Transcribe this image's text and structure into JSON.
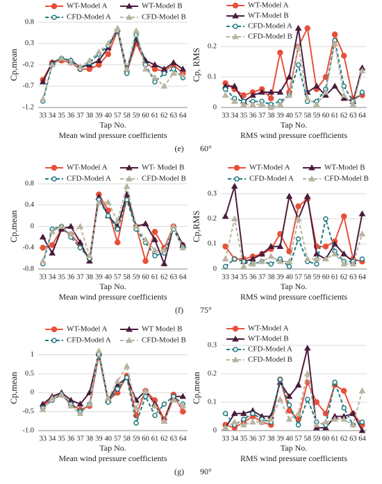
{
  "chart_data": [
    {
      "type": "line",
      "ylabel": "Cp,mean",
      "xlabel": "Tap No.",
      "subtitle": "Mean wind pressure coefficients",
      "legend": "top",
      "categories": [
        "33",
        "34",
        "35",
        "36",
        "37",
        "38",
        "39",
        "40",
        "57",
        "58",
        "59",
        "60",
        "61",
        "62",
        "63",
        "64"
      ],
      "ylim": [
        -1.2,
        0.8
      ],
      "yticks": [
        -1.2,
        -0.7,
        -0.2,
        0.3,
        0.8
      ],
      "grid": true,
      "series": [
        {
          "name": "WT-Model A",
          "color": "#e8503a",
          "marker": "circle",
          "dashed": false,
          "values": [
            -0.55,
            -0.15,
            -0.1,
            -0.15,
            -0.3,
            -0.3,
            -0.2,
            0.05,
            0.6,
            -0.35,
            0.3,
            -0.15,
            -0.3,
            -0.35,
            -0.2,
            -0.4
          ]
        },
        {
          "name": "WT-Model B",
          "color": "#4a1c3c",
          "marker": "triangle",
          "dashed": false,
          "values": [
            -0.6,
            -0.15,
            -0.05,
            -0.1,
            -0.25,
            -0.2,
            -0.1,
            0.2,
            0.65,
            -0.3,
            0.4,
            -0.1,
            -0.2,
            -0.3,
            -0.15,
            -0.3
          ]
        },
        {
          "name": "CFD-Model A",
          "color": "#1f7a80",
          "marker": "hollow",
          "dashed": true,
          "values": [
            -1.05,
            -0.2,
            -0.05,
            -0.1,
            -0.3,
            -0.15,
            0.05,
            0.25,
            0.6,
            -0.4,
            0.5,
            -0.2,
            -0.6,
            -0.4,
            -0.3,
            -0.5
          ]
        },
        {
          "name": "CFD-Model B",
          "color": "#b8b4a0",
          "marker": "triangle",
          "dashed": true,
          "values": [
            -1.0,
            -0.2,
            -0.05,
            -0.15,
            -0.25,
            -0.1,
            0.1,
            0.3,
            0.65,
            -0.3,
            0.6,
            -0.3,
            -0.5,
            -0.7,
            -0.4,
            -0.45
          ]
        }
      ]
    },
    {
      "type": "line",
      "ylabel": "Cp, RMS",
      "xlabel": "Tap No.",
      "subtitle": "RMS wind pressure coefficients",
      "legend": "upper-left",
      "categories": [
        "33",
        "34",
        "35",
        "36",
        "37",
        "38",
        "39",
        "40",
        "57",
        "58",
        "59",
        "60",
        "61",
        "62",
        "63",
        "64"
      ],
      "ylim": [
        0,
        0.28
      ],
      "yticks": [
        0,
        0.1,
        0.2
      ],
      "grid": true,
      "series": [
        {
          "name": "WT-Model A",
          "color": "#e8503a",
          "marker": "circle",
          "dashed": false,
          "values": [
            0.08,
            0.06,
            0.04,
            0.05,
            0.06,
            0.03,
            0.18,
            0.05,
            0.2,
            0.26,
            0.06,
            0.1,
            0.24,
            0.17,
            0.03,
            0.04
          ]
        },
        {
          "name": "WT-Model B",
          "color": "#4a1c3c",
          "marker": "triangle",
          "dashed": false,
          "values": [
            0.07,
            0.07,
            0.02,
            0.04,
            0.05,
            0.05,
            0.05,
            0.1,
            0.26,
            0.05,
            0.07,
            0.04,
            0.07,
            0.03,
            0.02,
            0.13
          ]
        },
        {
          "name": "CFD-Model A",
          "color": "#1f7a80",
          "marker": "hollow",
          "dashed": true,
          "values": [
            0.06,
            0.03,
            0.02,
            0.02,
            0.02,
            0.01,
            0.02,
            0.04,
            0.14,
            0.02,
            0.02,
            0.06,
            0.22,
            0.07,
            0.02,
            0.05
          ]
        },
        {
          "name": "CFD-Model B",
          "color": "#b8b4a0",
          "marker": "triangle",
          "dashed": true,
          "values": [
            0.04,
            0.02,
            0.01,
            0.01,
            0.01,
            0.0,
            0.01,
            0.04,
            0.2,
            0.03,
            0.01,
            0.05,
            0.21,
            0.04,
            0.01,
            0.12
          ]
        }
      ]
    },
    {
      "type": "line",
      "ylabel": "Cp,mean",
      "xlabel": "Tap No.",
      "subtitle": "Mean wind pressure coefficients",
      "legend": "top",
      "categories": [
        "33",
        "34",
        "35",
        "36",
        "37",
        "38",
        "39",
        "40",
        "57",
        "58",
        "59",
        "60",
        "61",
        "62",
        "63",
        "64"
      ],
      "ylim": [
        -0.8,
        0.8
      ],
      "yticks": [
        -0.8,
        -0.4,
        0,
        0.4,
        0.8
      ],
      "grid": true,
      "series": [
        {
          "name": "WT-Model A",
          "color": "#e8503a",
          "marker": "circle",
          "dashed": false,
          "values": [
            -0.4,
            -0.35,
            -0.05,
            -0.15,
            -0.35,
            -0.6,
            0.6,
            0.3,
            -0.3,
            0.55,
            0.0,
            -0.65,
            -0.1,
            -0.4,
            0.0,
            -0.35
          ]
        },
        {
          "name": "WT- Model B",
          "color": "#4a1c3c",
          "marker": "triangle",
          "dashed": false,
          "values": [
            -0.2,
            -0.5,
            -0.05,
            0.0,
            -0.3,
            -0.65,
            0.55,
            0.2,
            0.0,
            0.6,
            0.0,
            0.05,
            -0.25,
            -0.7,
            0.0,
            -0.35
          ]
        },
        {
          "name": "CFD-Model A",
          "color": "#1f7a80",
          "marker": "hollow",
          "dashed": true,
          "values": [
            -0.7,
            -0.05,
            0.0,
            -0.2,
            -0.4,
            -0.6,
            0.5,
            0.2,
            -0.05,
            0.5,
            -0.05,
            -0.3,
            -0.55,
            -0.5,
            -0.05,
            -0.4
          ]
        },
        {
          "name": "CFD-Model B",
          "color": "#b8b4a0",
          "marker": "triangle",
          "dashed": true,
          "values": [
            -0.65,
            -0.1,
            0.0,
            -0.15,
            0.0,
            -0.55,
            0.45,
            0.45,
            0.1,
            0.75,
            0.0,
            -0.25,
            -0.45,
            -0.45,
            0.0,
            -0.4
          ]
        }
      ]
    },
    {
      "type": "line",
      "ylabel": "Cp,RMS",
      "xlabel": "Tap No.",
      "subtitle": "RMS wind pressure coefficients",
      "legend": "top",
      "categories": [
        "33",
        "34",
        "35",
        "36",
        "37",
        "38",
        "39",
        "40",
        "57",
        "58",
        "59",
        "60",
        "61",
        "62",
        "63",
        "64"
      ],
      "ylim": [
        0,
        0.34
      ],
      "yticks": [
        0,
        0.1,
        0.2,
        0.3
      ],
      "grid": true,
      "series": [
        {
          "name": "WT-Model A",
          "color": "#e8503a",
          "marker": "circle",
          "dashed": false,
          "values": [
            0.09,
            0.04,
            0.04,
            0.05,
            0.06,
            0.08,
            0.14,
            0.07,
            0.25,
            0.28,
            0.09,
            0.09,
            0.11,
            0.21,
            0.04,
            0.03
          ]
        },
        {
          "name": "WT-Model B",
          "color": "#4a1c3c",
          "marker": "triangle",
          "dashed": false,
          "values": [
            0.21,
            0.33,
            0.03,
            0.04,
            0.06,
            0.09,
            0.09,
            0.29,
            0.2,
            0.29,
            0.06,
            0.04,
            0.1,
            0.06,
            0.03,
            0.22
          ]
        },
        {
          "name": "CFD-Model A",
          "color": "#1f7a80",
          "marker": "hollow",
          "dashed": true,
          "values": [
            0.01,
            0.04,
            0.03,
            0.02,
            0.03,
            0.02,
            0.04,
            0.01,
            0.12,
            0.03,
            0.02,
            0.2,
            0.07,
            0.03,
            0.03,
            0.04
          ]
        },
        {
          "name": "CFD-Model B",
          "color": "#b8b4a0",
          "marker": "triangle",
          "dashed": true,
          "values": [
            0.04,
            0.2,
            0.01,
            0.02,
            0.03,
            0.05,
            0.03,
            0.03,
            0.2,
            0.04,
            0.04,
            0.04,
            0.06,
            0.02,
            0.02,
            0.14
          ]
        }
      ]
    },
    {
      "type": "line",
      "ylabel": "Cp,mean",
      "xlabel": "Tap No.",
      "subtitle": "Mean wind pressure coefficients",
      "legend": "top",
      "categories": [
        "33",
        "34",
        "35",
        "36",
        "37",
        "38",
        "39",
        "40",
        "57",
        "58",
        "59",
        "60",
        "61",
        "62",
        "63",
        "64"
      ],
      "ylim": [
        -1.0,
        1.25
      ],
      "yticks": [
        {
          "value": -1.0,
          "label": "-1.0"
        },
        -0.5,
        0,
        0.5,
        1
      ],
      "grid": true,
      "series": [
        {
          "name": "WT-Model A",
          "color": "#e8503a",
          "marker": "circle",
          "dashed": false,
          "values": [
            -0.35,
            -0.15,
            -0.05,
            -0.3,
            -0.45,
            -0.35,
            1.0,
            -0.2,
            0.0,
            0.45,
            -0.6,
            0.05,
            -0.2,
            -0.7,
            -0.05,
            -0.5
          ]
        },
        {
          "name": "WT Model B",
          "color": "#4a1c3c",
          "marker": "triangle",
          "dashed": false,
          "values": [
            -0.3,
            -0.1,
            0.0,
            -0.2,
            -0.3,
            0.0,
            1.05,
            -0.2,
            0.2,
            0.4,
            -0.2,
            0.05,
            -0.3,
            -0.75,
            -0.1,
            -0.1
          ]
        },
        {
          "name": "CFD-Model A",
          "color": "#1f7a80",
          "marker": "hollow",
          "dashed": true,
          "values": [
            -0.4,
            -0.2,
            -0.05,
            -0.3,
            -0.5,
            -0.3,
            1.0,
            -0.25,
            0.1,
            0.4,
            -0.8,
            -0.1,
            -0.6,
            -0.3,
            -0.1,
            -0.3
          ]
        },
        {
          "name": "CFD-Model B",
          "color": "#b8b4a0",
          "marker": "triangle",
          "dashed": true,
          "values": [
            -0.45,
            -0.15,
            -0.05,
            -0.35,
            -0.55,
            -0.3,
            1.1,
            -0.15,
            0.3,
            0.7,
            -0.4,
            0.05,
            -0.35,
            -0.75,
            -0.2,
            -0.35
          ]
        }
      ]
    },
    {
      "type": "line",
      "ylabel": "Cp,mean",
      "xlabel": "Tap No.",
      "subtitle": "RMS wind pressure coefficients",
      "legend": "upper-left",
      "categories": [
        "33",
        "34",
        "35",
        "36",
        "37",
        "38",
        "39",
        "40",
        "57",
        "58",
        "59",
        "60",
        "61",
        "62",
        "63",
        "64"
      ],
      "ylim": [
        0,
        0.3
      ],
      "yticks": [
        0,
        0.1,
        0.2,
        0.3
      ],
      "grid": true,
      "series": [
        {
          "name": "WT-Model A",
          "color": "#e8503a",
          "marker": "circle",
          "dashed": false,
          "values": [
            0.02,
            0.01,
            0.03,
            0.05,
            0.03,
            0.02,
            0.18,
            0.07,
            0.04,
            0.17,
            0.1,
            0.06,
            0.16,
            0.14,
            0.06,
            0.02
          ]
        },
        {
          "name": "WT-Model B",
          "color": "#4a1c3c",
          "marker": "triangle",
          "dashed": false,
          "values": [
            0.01,
            0.06,
            0.06,
            0.07,
            0.05,
            0.05,
            0.17,
            0.12,
            0.16,
            0.29,
            0.01,
            0.01,
            0.05,
            0.05,
            0.06,
            0.0
          ]
        },
        {
          "name": "CFD-Model A",
          "color": "#1f7a80",
          "marker": "hollow",
          "dashed": true,
          "values": [
            0.06,
            0.02,
            0.04,
            0.06,
            0.04,
            0.03,
            0.18,
            0.09,
            0.02,
            0.11,
            0.03,
            0.02,
            0.17,
            0.08,
            0.02,
            0.03
          ]
        },
        {
          "name": "CFD-Model B",
          "color": "#b8b4a0",
          "marker": "triangle",
          "dashed": true,
          "values": [
            0.01,
            0.03,
            0.02,
            0.03,
            0.03,
            0.04,
            0.11,
            0.04,
            0.06,
            0.2,
            0.02,
            0.03,
            0.04,
            0.04,
            0.02,
            0.14
          ]
        }
      ]
    }
  ],
  "panel_captions": [
    {
      "label": "(e)",
      "angle": "60°"
    },
    {
      "label": "(f)",
      "angle": "75°"
    },
    {
      "label": "(g)",
      "angle": "90°"
    }
  ]
}
